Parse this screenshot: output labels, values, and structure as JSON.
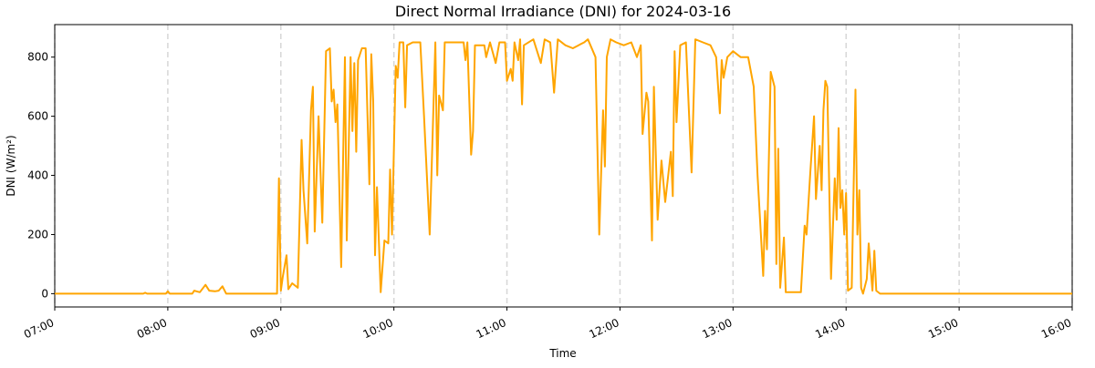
{
  "chart_data": {
    "type": "line",
    "title": "Direct Normal Irradiance (DNI) for 2024-03-16",
    "xlabel": "Time",
    "ylabel": "DNI (W/m²)",
    "x": [
      "07:00",
      "07:47",
      "07:48",
      "07:49",
      "07:59",
      "08:00",
      "08:01",
      "08:13",
      "08:14",
      "08:17",
      "08:20",
      "08:22",
      "08:25",
      "08:27",
      "08:29",
      "08:31",
      "08:58",
      "08:59",
      "09:00",
      "09:01",
      "09:03",
      "09:04",
      "09:06",
      "09:09",
      "09:11",
      "09:12",
      "09:14",
      "09:16",
      "09:17",
      "09:18",
      "09:20",
      "09:22",
      "09:24",
      "09:26",
      "09:27",
      "09:28",
      "09:29",
      "09:30",
      "09:32",
      "09:34",
      "09:35",
      "09:37",
      "09:38",
      "09:39",
      "09:40",
      "09:41",
      "09:43",
      "09:45",
      "09:47",
      "09:48",
      "09:49",
      "09:50",
      "09:51",
      "09:53",
      "09:55",
      "09:57",
      "09:58",
      "09:59",
      "10:01",
      "10:02",
      "10:03",
      "10:05",
      "10:06",
      "10:07",
      "10:10",
      "10:14",
      "10:16",
      "10:19",
      "10:22",
      "10:23",
      "10:24",
      "10:26",
      "10:27",
      "10:33",
      "10:37",
      "10:38",
      "10:39",
      "10:41",
      "10:42",
      "10:43",
      "10:48",
      "10:49",
      "10:51",
      "10:54",
      "10:56",
      "10:59",
      "11:00",
      "11:02",
      "11:03",
      "11:04",
      "11:06",
      "11:07",
      "11:08",
      "11:09",
      "11:14",
      "11:18",
      "11:20",
      "11:23",
      "11:25",
      "11:27",
      "11:31",
      "11:35",
      "11:38",
      "11:41",
      "11:43",
      "11:47",
      "11:49",
      "11:51",
      "11:52",
      "11:53",
      "11:55",
      "11:58",
      "12:02",
      "12:06",
      "12:09",
      "12:11",
      "12:12",
      "12:14",
      "12:15",
      "12:17",
      "12:18",
      "12:20",
      "12:22",
      "12:24",
      "12:27",
      "12:28",
      "12:29",
      "12:30",
      "12:32",
      "12:35",
      "12:38",
      "12:40",
      "12:44",
      "12:48",
      "12:51",
      "12:53",
      "12:54",
      "12:55",
      "12:57",
      "13:00",
      "13:04",
      "13:08",
      "13:11",
      "13:13",
      "13:16",
      "13:17",
      "13:18",
      "13:20",
      "13:22",
      "13:23",
      "13:24",
      "13:25",
      "13:27",
      "13:28",
      "13:36",
      "13:38",
      "13:39",
      "13:41",
      "13:43",
      "13:44",
      "13:46",
      "13:47",
      "13:48",
      "13:49",
      "13:50",
      "13:52",
      "13:54",
      "13:55",
      "13:56",
      "13:57",
      "13:58",
      "13:59",
      "14:00",
      "14:01",
      "14:03",
      "14:05",
      "14:06",
      "14:07",
      "14:08",
      "14:09",
      "14:11",
      "14:12",
      "14:14",
      "14:15",
      "14:16",
      "14:18",
      "16:00"
    ],
    "series": [
      {
        "name": "DNI",
        "color": "#ffa500",
        "values": [
          0,
          0,
          3,
          0,
          0,
          8,
          0,
          0,
          10,
          5,
          30,
          10,
          8,
          10,
          25,
          0,
          0,
          390,
          10,
          55,
          130,
          15,
          35,
          20,
          520,
          350,
          170,
          620,
          700,
          210,
          600,
          240,
          820,
          830,
          650,
          690,
          580,
          640,
          90,
          800,
          180,
          800,
          550,
          780,
          480,
          790,
          830,
          830,
          370,
          810,
          650,
          130,
          360,
          5,
          180,
          170,
          420,
          200,
          770,
          730,
          850,
          850,
          630,
          840,
          850,
          850,
          600,
          200,
          850,
          400,
          670,
          620,
          850,
          850,
          850,
          790,
          850,
          470,
          550,
          840,
          840,
          800,
          850,
          780,
          850,
          850,
          720,
          760,
          720,
          850,
          790,
          860,
          640,
          840,
          860,
          780,
          860,
          850,
          680,
          860,
          840,
          830,
          840,
          850,
          860,
          800,
          200,
          620,
          430,
          800,
          860,
          850,
          840,
          850,
          800,
          840,
          540,
          680,
          650,
          180,
          700,
          250,
          450,
          310,
          480,
          330,
          820,
          580,
          840,
          850,
          410,
          860,
          850,
          840,
          800,
          610,
          790,
          730,
          800,
          820,
          800,
          800,
          700,
          400,
          60,
          280,
          150,
          750,
          700,
          100,
          490,
          20,
          190,
          5,
          5,
          230,
          200,
          410,
          600,
          320,
          500,
          350,
          620,
          720,
          700,
          50,
          390,
          250,
          560,
          290,
          350,
          200,
          340,
          10,
          20,
          690,
          200,
          350,
          20,
          0,
          50,
          170,
          10,
          145,
          10,
          0,
          0
        ]
      }
    ],
    "xlim": [
      "07:00",
      "16:00"
    ],
    "xticks": [
      "07:00",
      "08:00",
      "09:00",
      "10:00",
      "11:00",
      "12:00",
      "13:00",
      "14:00",
      "15:00",
      "16:00"
    ],
    "ylim": [
      -45,
      910
    ],
    "yticks": [
      0,
      200,
      400,
      600,
      800
    ],
    "grid": true
  }
}
